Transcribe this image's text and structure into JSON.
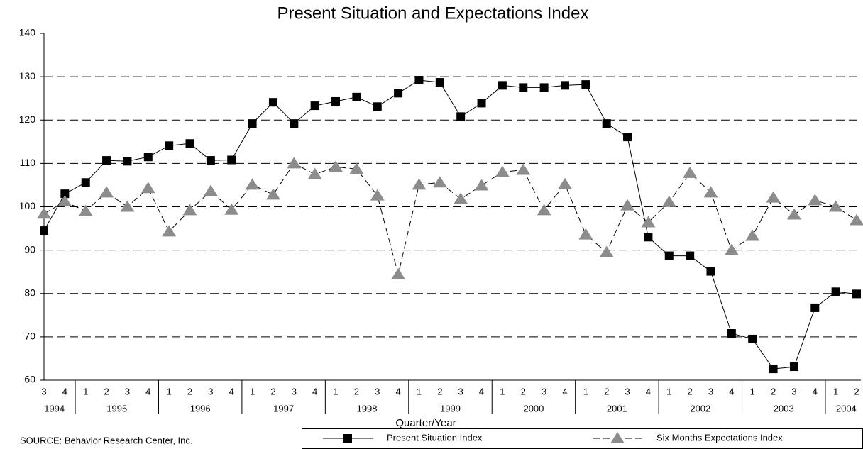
{
  "chart_data": {
    "type": "line",
    "title": "Present Situation and Expectations Index",
    "x_label": "Quarter/Year",
    "source": "SOURCE: Behavior Research Center, Inc.",
    "categories": [
      "3",
      "4",
      "1",
      "2",
      "3",
      "4",
      "1",
      "2",
      "3",
      "4",
      "1",
      "2",
      "3",
      "4",
      "1",
      "2",
      "3",
      "4",
      "1",
      "2",
      "3",
      "4",
      "1",
      "2",
      "3",
      "4",
      "1",
      "2",
      "3",
      "4",
      "1",
      "2",
      "3",
      "4",
      "1",
      "2",
      "3",
      "4",
      "1",
      "2"
    ],
    "years": [
      "1994",
      "1995",
      "1996",
      "1997",
      "1998",
      "1999",
      "2000",
      "2001",
      "2002",
      "2003",
      "2004"
    ],
    "series": [
      {
        "name": "Present Situation Index",
        "color": "#000000",
        "marker": "square",
        "dashed": false,
        "values": [
          94.5,
          103,
          105.6,
          110.7,
          110.5,
          111.5,
          114.1,
          114.6,
          110.7,
          110.8,
          119.2,
          124.1,
          119.2,
          123.3,
          124.3,
          125.3,
          123.1,
          126.2,
          129.2,
          128.7,
          120.8,
          123.9,
          128,
          127.5,
          127.5,
          128,
          128.2,
          119.2,
          116.1,
          93,
          88.7,
          88.7,
          85.1,
          70.8,
          69.5,
          62.6,
          63.1,
          76.7,
          80.4,
          79.9
        ]
      },
      {
        "name": "Six Months Expectations Index",
        "color": "#8c8c8c",
        "marker": "triangle",
        "dashed": true,
        "values": [
          98.4,
          101.2,
          99,
          103.3,
          100,
          104.3,
          94.3,
          99.2,
          103.6,
          99.3,
          105.1,
          102.8,
          110,
          107.5,
          109.2,
          108.7,
          102.6,
          84.4,
          105.1,
          105.6,
          101.8,
          104.9,
          108,
          108.5,
          99.2,
          105.2,
          93.6,
          89.5,
          100.3,
          96.4,
          101.1,
          107.8,
          103.3,
          90,
          93.3,
          102.1,
          98.2,
          101.5,
          100,
          96.9
        ]
      }
    ],
    "ylim": [
      60,
      140
    ],
    "yticks": [
      60,
      70,
      80,
      90,
      100,
      110,
      120,
      130,
      140
    ],
    "grid": true
  }
}
